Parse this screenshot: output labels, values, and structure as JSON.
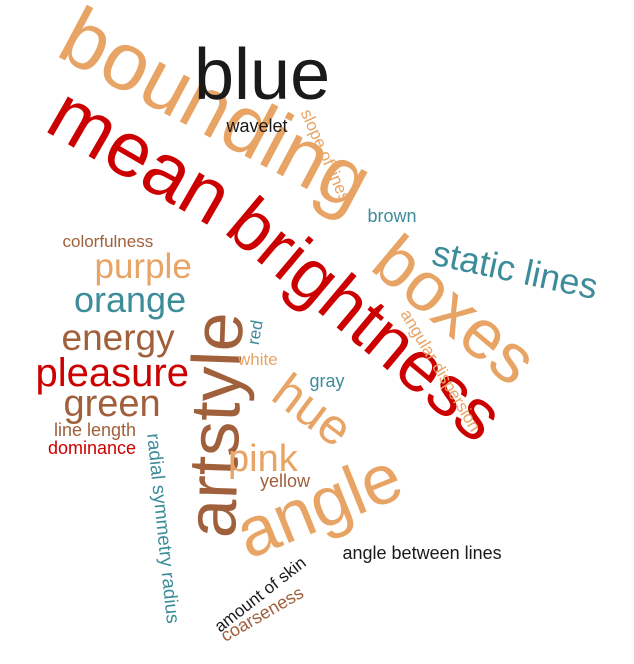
{
  "colors": {
    "tan": "#e8a464",
    "red": "#cc0000",
    "black": "#1a1a1a",
    "teal": "#3d8c9a",
    "brown": "#a0603c"
  },
  "words": [
    {
      "id": "bounding",
      "text": "bounding",
      "color": "tan"
    },
    {
      "id": "blue",
      "text": "blue",
      "color": "black"
    },
    {
      "id": "mean",
      "text": "mean",
      "color": "red"
    },
    {
      "id": "brightness",
      "text": "brightness",
      "color": "red"
    },
    {
      "id": "boxes",
      "text": "boxes",
      "color": "tan"
    },
    {
      "id": "artstyle",
      "text": "artstyle",
      "color": "brown"
    },
    {
      "id": "angle",
      "text": "angle",
      "color": "tan"
    },
    {
      "id": "hue",
      "text": "hue",
      "color": "tan"
    },
    {
      "id": "static-lines",
      "text": "static lines",
      "color": "teal"
    },
    {
      "id": "wavelet",
      "text": "wavelet",
      "color": "black"
    },
    {
      "id": "slope-of-lines",
      "text": "slope of lines",
      "color": "tan"
    },
    {
      "id": "brown",
      "text": "brown",
      "color": "teal"
    },
    {
      "id": "colorfulness",
      "text": "colorfulness",
      "color": "brown"
    },
    {
      "id": "purple",
      "text": "purple",
      "color": "tan"
    },
    {
      "id": "orange",
      "text": "orange",
      "color": "teal"
    },
    {
      "id": "energy",
      "text": "energy",
      "color": "brown"
    },
    {
      "id": "pleasure",
      "text": "pleasure",
      "color": "red"
    },
    {
      "id": "green",
      "text": "green",
      "color": "brown"
    },
    {
      "id": "line-length",
      "text": "line length",
      "color": "brown"
    },
    {
      "id": "dominance",
      "text": "dominance",
      "color": "red"
    },
    {
      "id": "radial-symmetry-radius",
      "text": "radial symmetry radius",
      "color": "teal"
    },
    {
      "id": "red",
      "text": "red",
      "color": "teal"
    },
    {
      "id": "white",
      "text": "white",
      "color": "tan"
    },
    {
      "id": "gray",
      "text": "gray",
      "color": "teal"
    },
    {
      "id": "angular-dispersion",
      "text": "angular dispersion",
      "color": "tan"
    },
    {
      "id": "pink",
      "text": "pink",
      "color": "tan"
    },
    {
      "id": "yellow",
      "text": "yellow",
      "color": "brown"
    },
    {
      "id": "amount-of-skin",
      "text": "amount of skin",
      "color": "black"
    },
    {
      "id": "coarseness",
      "text": "coarseness",
      "color": "brown"
    },
    {
      "id": "angle-between-lines",
      "text": "angle between lines",
      "color": "black"
    }
  ]
}
